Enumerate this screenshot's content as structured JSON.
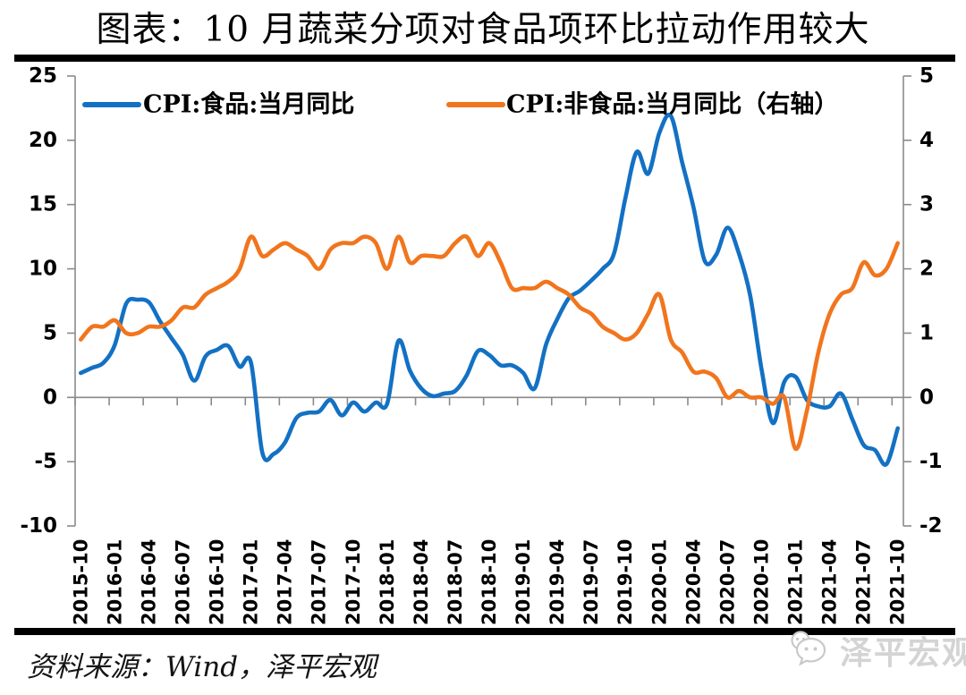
{
  "footer": {
    "source_text": "资料来源：Wind，泽平宏观",
    "watermark_text": "泽平宏观",
    "watermark_icon": "wechat-icon"
  },
  "colors": {
    "food_line": "#1371C4",
    "nonfood_line": "#F1751D",
    "axis": "#8a8a8a",
    "text": "#000000",
    "divider": "#000000",
    "watermark": "#d4d4d4"
  },
  "chart_data": {
    "type": "line",
    "title": "图表：10 月蔬菜分项对食品项环比拉动作用较大",
    "categories": [
      "2015-10",
      "2015-11",
      "2015-12",
      "2016-01",
      "2016-02",
      "2016-03",
      "2016-04",
      "2016-05",
      "2016-06",
      "2016-07",
      "2016-08",
      "2016-09",
      "2016-10",
      "2016-11",
      "2016-12",
      "2017-01",
      "2017-02",
      "2017-03",
      "2017-04",
      "2017-05",
      "2017-06",
      "2017-07",
      "2017-08",
      "2017-09",
      "2017-10",
      "2017-11",
      "2017-12",
      "2018-01",
      "2018-02",
      "2018-03",
      "2018-04",
      "2018-05",
      "2018-06",
      "2018-07",
      "2018-08",
      "2018-09",
      "2018-10",
      "2018-11",
      "2018-12",
      "2019-01",
      "2019-02",
      "2019-03",
      "2019-04",
      "2019-05",
      "2019-06",
      "2019-07",
      "2019-08",
      "2019-09",
      "2019-10",
      "2019-11",
      "2019-12",
      "2020-01",
      "2020-02",
      "2020-03",
      "2020-04",
      "2020-05",
      "2020-06",
      "2020-07",
      "2020-08",
      "2020-09",
      "2020-10",
      "2020-11",
      "2020-12",
      "2021-01",
      "2021-02",
      "2021-03",
      "2021-04",
      "2021-05",
      "2021-06",
      "2021-07",
      "2021-08",
      "2021-09",
      "2021-10"
    ],
    "x_tick_every": 3,
    "x_tick_labels": [
      "2015-10",
      "2016-01",
      "2016-04",
      "2016-07",
      "2016-10",
      "2017-01",
      "2017-04",
      "2017-07",
      "2017-10",
      "2018-01",
      "2018-04",
      "2018-07",
      "2018-10",
      "2019-01",
      "2019-04",
      "2019-07",
      "2019-10",
      "2020-01",
      "2020-04",
      "2020-07",
      "2020-10",
      "2021-01",
      "2021-04",
      "2021-07",
      "2021-10"
    ],
    "series": [
      {
        "name": "CPI:食品:当月同比",
        "axis": "left",
        "color": "#1371C4",
        "values": [
          1.9,
          2.3,
          2.7,
          4.1,
          7.3,
          7.6,
          7.4,
          5.9,
          4.6,
          3.3,
          1.3,
          3.2,
          3.7,
          4.0,
          2.4,
          2.7,
          -4.3,
          -4.4,
          -3.5,
          -1.6,
          -1.2,
          -1.1,
          -0.2,
          -1.4,
          -0.4,
          -1.1,
          -0.4,
          -0.5,
          4.4,
          2.1,
          0.7,
          0.1,
          0.3,
          0.5,
          1.7,
          3.6,
          3.3,
          2.5,
          2.5,
          1.9,
          0.7,
          4.1,
          6.1,
          7.7,
          8.3,
          9.1,
          10.0,
          11.2,
          15.5,
          19.1,
          17.4,
          20.6,
          21.9,
          18.3,
          14.8,
          10.6,
          11.1,
          13.2,
          11.2,
          7.9,
          2.2,
          -2.0,
          1.2,
          1.6,
          -0.2,
          -0.7,
          -0.7,
          0.3,
          -1.7,
          -3.7,
          -4.1,
          -5.2,
          -2.4
        ]
      },
      {
        "name": "CPI:非食品:当月同比（右轴）",
        "axis": "right",
        "color": "#F1751D",
        "values": [
          0.9,
          1.1,
          1.1,
          1.2,
          1.0,
          1.0,
          1.1,
          1.1,
          1.2,
          1.4,
          1.4,
          1.6,
          1.7,
          1.8,
          2.0,
          2.5,
          2.2,
          2.3,
          2.4,
          2.3,
          2.2,
          2.0,
          2.3,
          2.4,
          2.4,
          2.5,
          2.4,
          2.0,
          2.5,
          2.1,
          2.2,
          2.2,
          2.2,
          2.4,
          2.5,
          2.2,
          2.4,
          2.1,
          1.7,
          1.7,
          1.7,
          1.8,
          1.7,
          1.6,
          1.4,
          1.3,
          1.1,
          1.0,
          0.9,
          1.0,
          1.3,
          1.6,
          0.9,
          0.7,
          0.4,
          0.4,
          0.3,
          0.0,
          0.1,
          0.0,
          0.0,
          -0.1,
          0.0,
          -0.8,
          -0.2,
          0.7,
          1.3,
          1.6,
          1.7,
          2.1,
          1.9,
          2.0,
          2.4
        ]
      }
    ],
    "left_axis": {
      "min": -10,
      "max": 25,
      "step": 5,
      "ticks": [
        25,
        20,
        15,
        10,
        5,
        0,
        -5,
        -10
      ]
    },
    "right_axis": {
      "min": -2,
      "max": 5,
      "step": 1,
      "ticks": [
        5,
        4,
        3,
        2,
        1,
        0,
        -1,
        -2
      ]
    },
    "legend_position": "top-inside",
    "grid": "zero-line-only"
  }
}
